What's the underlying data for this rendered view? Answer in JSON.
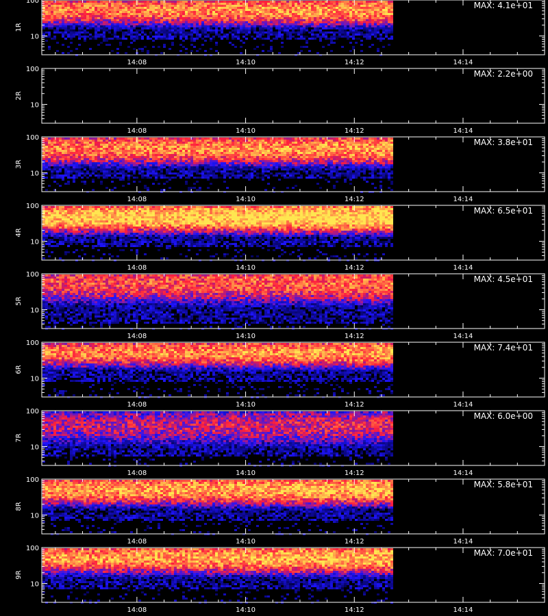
{
  "chart_data": [
    {
      "type": "heatmap",
      "panel_label": "1R",
      "max_label": "MAX: 4.1e+01",
      "max": 41,
      "y_ticks": [
        "10",
        "100"
      ],
      "x_ticks": [
        "14:08",
        "14:10",
        "14:12",
        "14:14"
      ],
      "ylim": [
        3,
        100
      ],
      "data_end": "14:12:40",
      "band": {
        "low": 12,
        "high": 100,
        "peak": 55,
        "intensity": 0.8
      }
    },
    {
      "type": "heatmap",
      "panel_label": "2R",
      "max_label": "MAX: 2.2e+00",
      "max": 2.2,
      "y_ticks": [
        "10",
        "100"
      ],
      "x_ticks": [
        "14:08",
        "14:10",
        "14:12",
        "14:14"
      ],
      "ylim": [
        3,
        100
      ],
      "data_end": "14:12:40",
      "band": {
        "low": 0,
        "high": 0,
        "peak": 0,
        "intensity": 0
      }
    },
    {
      "type": "heatmap",
      "panel_label": "3R",
      "max_label": "MAX: 3.8e+01",
      "max": 38,
      "y_ticks": [
        "10",
        "100"
      ],
      "x_ticks": [
        "14:08",
        "14:10",
        "14:12",
        "14:14"
      ],
      "ylim": [
        3,
        100
      ],
      "data_end": "14:12:40",
      "band": {
        "low": 10,
        "high": 100,
        "peak": 50,
        "intensity": 0.8
      }
    },
    {
      "type": "heatmap",
      "panel_label": "4R",
      "max_label": "MAX: 6.5e+01",
      "max": 65,
      "y_ticks": [
        "10",
        "100"
      ],
      "x_ticks": [
        "14:08",
        "14:10",
        "14:12",
        "14:14"
      ],
      "ylim": [
        3,
        100
      ],
      "data_end": "14:12:40",
      "band": {
        "low": 10,
        "high": 100,
        "peak": 50,
        "intensity": 0.95
      }
    },
    {
      "type": "heatmap",
      "panel_label": "5R",
      "max_label": "MAX: 4.5e+01",
      "max": 45,
      "y_ticks": [
        "10",
        "100"
      ],
      "x_ticks": [
        "14:08",
        "14:10",
        "14:12",
        "14:14"
      ],
      "ylim": [
        3,
        100
      ],
      "data_end": "14:12:40",
      "band": {
        "low": 6,
        "high": 100,
        "peak": 60,
        "intensity": 0.7
      }
    },
    {
      "type": "heatmap",
      "panel_label": "6R",
      "max_label": "MAX: 7.4e+01",
      "max": 74,
      "y_ticks": [
        "10",
        "100"
      ],
      "x_ticks": [
        "14:08",
        "14:10",
        "14:12",
        "14:14"
      ],
      "ylim": [
        3,
        100
      ],
      "data_end": "14:12:40",
      "band": {
        "low": 12,
        "high": 100,
        "peak": 55,
        "intensity": 0.8
      }
    },
    {
      "type": "heatmap",
      "panel_label": "7R",
      "max_label": "MAX: 6.0e+00",
      "max": 6.0,
      "y_ticks": [
        "10",
        "100"
      ],
      "x_ticks": [
        "14:08",
        "14:10",
        "14:12",
        "14:14"
      ],
      "ylim": [
        3,
        100
      ],
      "data_end": "14:12:40",
      "band": {
        "low": 8,
        "high": 100,
        "peak": 40,
        "intensity": 0.55
      }
    },
    {
      "type": "heatmap",
      "panel_label": "8R",
      "max_label": "MAX: 5.8e+01",
      "max": 58,
      "y_ticks": [
        "10",
        "100"
      ],
      "x_ticks": [
        "14:08",
        "14:10",
        "14:12",
        "14:14"
      ],
      "ylim": [
        3,
        100
      ],
      "data_end": "14:12:40",
      "band": {
        "low": 10,
        "high": 100,
        "peak": 55,
        "intensity": 0.85
      }
    },
    {
      "type": "heatmap",
      "panel_label": "9R",
      "max_label": "MAX: 7.0e+01",
      "max": 70,
      "y_ticks": [
        "10",
        "100"
      ],
      "x_ticks": [
        "14:08",
        "14:10",
        "14:12",
        "14:14"
      ],
      "ylim": [
        3,
        100
      ],
      "data_end": "14:12:40",
      "band": {
        "low": 10,
        "high": 100,
        "peak": 55,
        "intensity": 0.85
      }
    }
  ],
  "x_range": [
    "14:06:15",
    "14:15:30"
  ],
  "colors": {
    "background": "#000000",
    "axis": "#ffffff",
    "low": "#1010ff",
    "mid": "#ff2020",
    "high": "#ffe060"
  }
}
